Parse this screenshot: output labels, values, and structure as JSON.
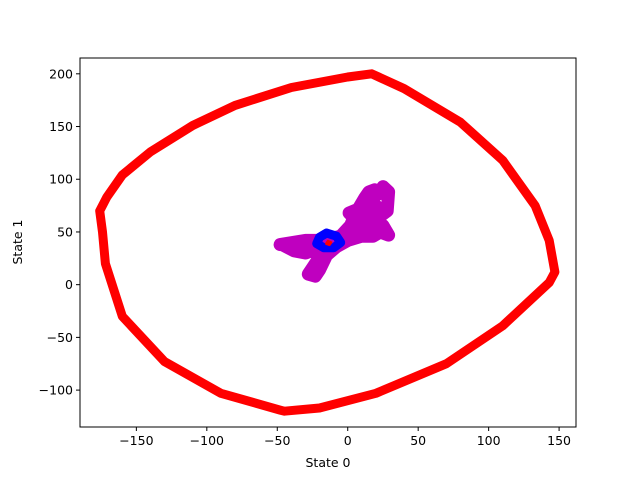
{
  "chart_data": {
    "type": "scatter",
    "xlabel": "State 0",
    "ylabel": "State 1",
    "xlim": [
      -190,
      162
    ],
    "ylim": [
      -135,
      215
    ],
    "xticks": [
      -150,
      -100,
      -50,
      0,
      50,
      100,
      150
    ],
    "yticks": [
      -100,
      -50,
      0,
      50,
      100,
      150,
      200
    ],
    "xtick_labels": [
      "−150",
      "−100",
      "−50",
      "0",
      "50",
      "100",
      "150"
    ],
    "ytick_labels": [
      "−100",
      "−50",
      "0",
      "50",
      "100",
      "150",
      "200"
    ],
    "grid": false,
    "series": [
      {
        "color": "#ff0000",
        "style": "thick closed trajectory",
        "points": [
          [
            -176,
            70
          ],
          [
            -171,
            83
          ],
          [
            -160,
            104
          ],
          [
            -140,
            126
          ],
          [
            -110,
            151
          ],
          [
            -80,
            170
          ],
          [
            -40,
            187
          ],
          [
            0,
            197
          ],
          [
            17,
            200
          ],
          [
            40,
            186
          ],
          [
            80,
            154
          ],
          [
            110,
            118
          ],
          [
            133,
            75
          ],
          [
            143,
            42
          ],
          [
            147,
            12
          ],
          [
            143,
            2
          ],
          [
            110,
            -39
          ],
          [
            70,
            -75
          ],
          [
            20,
            -103
          ],
          [
            -20,
            -117
          ],
          [
            -45,
            -120
          ],
          [
            -48,
            -119
          ],
          [
            -90,
            -103
          ],
          [
            -130,
            -73
          ],
          [
            -160,
            -30
          ],
          [
            -172,
            20
          ],
          [
            -174,
            50
          ],
          [
            -176,
            70
          ]
        ]
      },
      {
        "color": "#bf00bf",
        "style": "thick tangled trajectory",
        "points": [
          [
            -48,
            38
          ],
          [
            -30,
            42
          ],
          [
            -18,
            42
          ],
          [
            -5,
            46
          ],
          [
            2,
            56
          ],
          [
            5,
            66
          ],
          [
            8,
            73
          ],
          [
            12,
            82
          ],
          [
            15,
            88
          ],
          [
            19,
            90
          ],
          [
            22,
            86
          ],
          [
            25,
            93
          ],
          [
            29,
            88
          ],
          [
            28,
            70
          ],
          [
            20,
            62
          ],
          [
            10,
            55
          ],
          [
            3,
            50
          ],
          [
            -5,
            44
          ],
          [
            -12,
            36
          ],
          [
            -20,
            26
          ],
          [
            -25,
            16
          ],
          [
            -28,
            10
          ],
          [
            -23,
            8
          ],
          [
            -20,
            14
          ],
          [
            -15,
            28
          ],
          [
            -8,
            36
          ],
          [
            0,
            42
          ],
          [
            10,
            46
          ],
          [
            18,
            46
          ],
          [
            23,
            50
          ],
          [
            29,
            47
          ],
          [
            25,
            56
          ],
          [
            16,
            56
          ],
          [
            7,
            60
          ],
          [
            1,
            68
          ],
          [
            8,
            72
          ],
          [
            18,
            78
          ],
          [
            22,
            72
          ],
          [
            12,
            65
          ],
          [
            3,
            54
          ],
          [
            -3,
            44
          ],
          [
            -18,
            42
          ],
          [
            -35,
            40
          ],
          [
            -45,
            37
          ],
          [
            -38,
            32
          ],
          [
            -30,
            30
          ],
          [
            -22,
            34
          ],
          [
            -12,
            38
          ]
        ]
      },
      {
        "color": "#0000ff",
        "style": "thick small loop",
        "points": [
          [
            -15,
            49
          ],
          [
            -8,
            46
          ],
          [
            -5,
            40
          ],
          [
            -10,
            35
          ],
          [
            -17,
            35
          ],
          [
            -22,
            39
          ],
          [
            -20,
            45
          ],
          [
            -15,
            49
          ]
        ]
      },
      {
        "color": "#ff0000",
        "style": "tiny center loop",
        "points": [
          [
            -14,
            41
          ],
          [
            -12,
            40
          ],
          [
            -13,
            38
          ],
          [
            -15,
            39
          ],
          [
            -14,
            41
          ]
        ]
      }
    ]
  }
}
